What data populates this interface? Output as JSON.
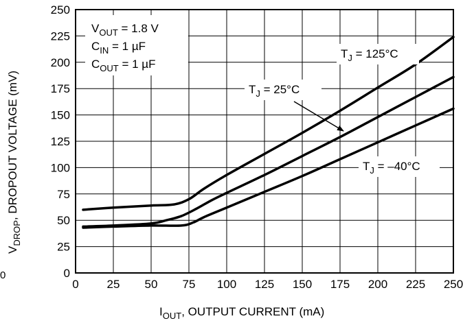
{
  "chart_data": {
    "type": "line",
    "xlabel": {
      "main": "I",
      "sub": "OUT",
      "rest": ", OUTPUT CURRENT (mA)"
    },
    "ylabel": {
      "main": "V",
      "sub": "DROP",
      "rest": ", DROPOUT VOLTAGE (mV)"
    },
    "xlim": [
      0,
      250
    ],
    "ylim": [
      0,
      250
    ],
    "x_ticks": [
      0,
      25,
      50,
      75,
      100,
      125,
      150,
      175,
      200,
      225,
      250
    ],
    "y_ticks": [
      0,
      25,
      50,
      75,
      100,
      125,
      150,
      175,
      200,
      225,
      250
    ],
    "grid": true,
    "conditions": [
      {
        "main": "V",
        "sub": "OUT",
        "rest": " = 1.8 V"
      },
      {
        "main": "C",
        "sub": "IN",
        "rest": " = 1 µF"
      },
      {
        "main": "C",
        "sub": "OUT",
        "rest": " = 1 µF"
      }
    ],
    "series": [
      {
        "name": {
          "main": "T",
          "sub": "J",
          "rest": " = 125°C"
        },
        "x": [
          5,
          25,
          50,
          65,
          75,
          85,
          100,
          125,
          150,
          175,
          200,
          225,
          250
        ],
        "y": [
          60,
          62,
          64,
          65,
          70,
          80,
          93,
          113,
          133,
          154,
          176,
          198,
          224
        ]
      },
      {
        "name": {
          "main": "T",
          "sub": "J",
          "rest": " = 25°C"
        },
        "x": [
          5,
          25,
          50,
          60,
          70,
          80,
          90,
          100,
          125,
          150,
          175,
          200,
          225,
          250
        ],
        "y": [
          44,
          45,
          47,
          50,
          54,
          61,
          69,
          76,
          93,
          111,
          129,
          148,
          167,
          186
        ]
      },
      {
        "name": {
          "main": "T",
          "sub": "J",
          "rest": " = –40°C"
        },
        "x": [
          5,
          25,
          50,
          70,
          78,
          85,
          100,
          125,
          150,
          175,
          200,
          225,
          250
        ],
        "y": [
          43,
          44,
          45,
          45,
          48,
          53,
          62,
          77,
          92,
          108,
          124,
          140,
          156
        ]
      }
    ],
    "stray_label": "0"
  },
  "colors": {
    "line": "#000000",
    "grid": "#000000",
    "background": "#ffffff"
  }
}
